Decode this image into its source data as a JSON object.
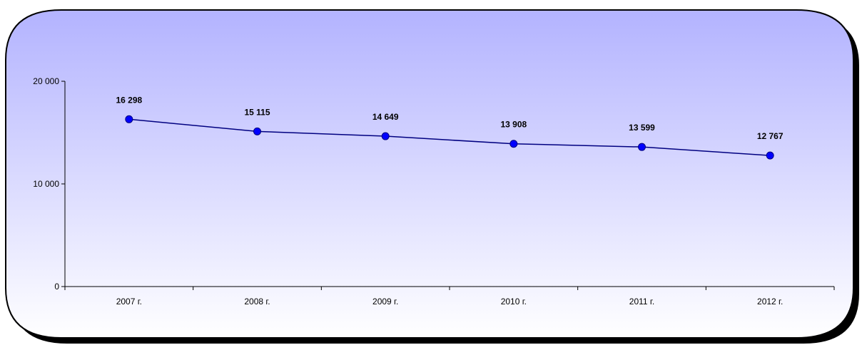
{
  "chart_data": {
    "type": "line",
    "categories": [
      "2007 г.",
      "2008 г.",
      "2009 г.",
      "2010 г.",
      "2011 г.",
      "2012 г."
    ],
    "values": [
      16298,
      15115,
      14649,
      13908,
      13599,
      12767
    ],
    "data_labels": [
      "16 298",
      "15 115",
      "14 649",
      "13 908",
      "13 599",
      "12 767"
    ],
    "y_ticks": [
      {
        "value": 0,
        "label": "0"
      },
      {
        "value": 10000,
        "label": "10 000"
      },
      {
        "value": 20000,
        "label": "20 000"
      }
    ],
    "ylim": [
      0,
      20000
    ],
    "title": "",
    "xlabel": "",
    "ylabel": "",
    "grid": false,
    "legend": "none",
    "colors": {
      "line": "#000080",
      "marker": "#0000ff",
      "background_top": "#b3b3ff",
      "background_bottom": "#ffffff",
      "frame_border": "#000000",
      "shadow": "#000000"
    }
  }
}
